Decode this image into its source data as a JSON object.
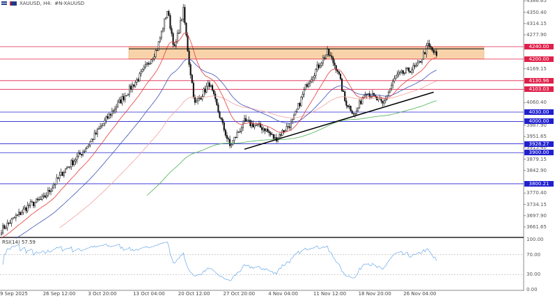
{
  "header": {
    "symbol": "XAUUSD, H4:",
    "description": "#N-XAUUSD"
  },
  "colors": {
    "support": "#2020d0",
    "resistance": "#e0204a",
    "zone": "#f5c48c",
    "ma_fast": "#e53935",
    "ma_mid": "#3f51b5",
    "ma_slow": "#f4a0a0",
    "ma_long": "#4caf50",
    "rsi": "#6aa8e8"
  },
  "chart_data": {
    "type": "candlestick",
    "ylim": [
      3640,
      4400
    ],
    "price_ticks": [
      "4386.65",
      "4350.40",
      "4314.15",
      "4277.90",
      "4169.15",
      "4060.40",
      "3987.90",
      "3951.65",
      "3915.40",
      "3879.15",
      "3842.90",
      "3770.40",
      "3734.15",
      "3697.90",
      "3661.65"
    ],
    "price_tick_values": [
      4386.65,
      4350.4,
      4314.15,
      4277.9,
      4169.15,
      4060.4,
      3987.9,
      3951.65,
      3915.4,
      3879.15,
      3842.9,
      3770.4,
      3734.15,
      3697.9,
      3661.65
    ],
    "resistance_levels": [
      {
        "label": "4240.00",
        "value": 4240.0
      },
      {
        "label": "4200.00",
        "value": 4200.0
      },
      {
        "label": "4130.96",
        "value": 4130.96
      },
      {
        "label": "4103.03",
        "value": 4103.03
      }
    ],
    "support_levels": [
      {
        "label": "4030.00",
        "value": 4030.0
      },
      {
        "label": "4000.00",
        "value": 4000.0
      },
      {
        "label": "3928.27",
        "value": 3928.27
      },
      {
        "label": "3900.00",
        "value": 3900.0
      },
      {
        "label": "3800.21",
        "value": 3800.21
      }
    ],
    "zone": {
      "low": 4200,
      "high": 4240,
      "line": 4233
    },
    "trendline": {
      "from": [
        167,
        3911
      ],
      "to": [
        297,
        4094
      ]
    },
    "candle_count": 300,
    "close_keypoints": [
      [
        0,
        3653
      ],
      [
        19,
        3731
      ],
      [
        29,
        3753
      ],
      [
        43,
        3842
      ],
      [
        57,
        3909
      ],
      [
        76,
        4032
      ],
      [
        95,
        4144
      ],
      [
        107,
        4233
      ],
      [
        114,
        4356
      ],
      [
        119,
        4233
      ],
      [
        125,
        4356
      ],
      [
        129,
        4189
      ],
      [
        133,
        4055
      ],
      [
        143,
        4122
      ],
      [
        152,
        3988
      ],
      [
        157,
        3921
      ],
      [
        167,
        3999
      ],
      [
        181,
        3977
      ],
      [
        188,
        3943
      ],
      [
        200,
        3999
      ],
      [
        210,
        4122
      ],
      [
        224,
        4222
      ],
      [
        231,
        4166
      ],
      [
        236,
        4066
      ],
      [
        243,
        4022
      ],
      [
        250,
        4099
      ],
      [
        262,
        4055
      ],
      [
        271,
        4144
      ],
      [
        286,
        4177
      ],
      [
        293,
        4244
      ],
      [
        299,
        4211
      ]
    ],
    "ma_periods": {
      "fast": 20,
      "mid": 50,
      "slow": 100,
      "long": 200
    },
    "time_labels": [
      "9 Sep 2025",
      "26 Sep 12:00",
      "3 Oct 20:00",
      "13 Oct 04:00",
      "20 Oct 12:00",
      "27 Oct 20:00",
      "4 Nov 04:00",
      "11 Nov 12:00",
      "18 Nov 20:00",
      "26 Nov 04:00"
    ],
    "rsi": {
      "label": "RSI(14) 57.59",
      "value": 57.59,
      "levels": [
        70,
        30
      ],
      "ticks": [
        "100.00",
        "70.00",
        "30.00",
        "0.00"
      ],
      "tick_values": [
        100,
        70,
        30,
        0
      ]
    }
  }
}
